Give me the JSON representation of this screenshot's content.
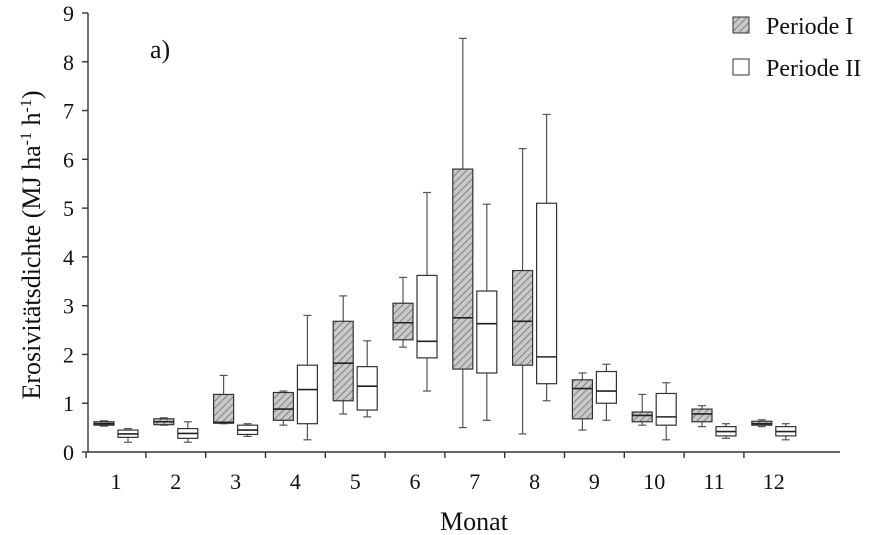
{
  "chart_data": {
    "type": "boxplot",
    "panel_label": "a)",
    "xlabel": "Monat",
    "ylabel_main": "Erosivitätsdichte (MJ ha",
    "ylabel_sup1": "-1",
    "ylabel_mid": " h",
    "ylabel_sup2": "-1",
    "ylabel_end": ")",
    "ylim": [
      0,
      9
    ],
    "yticks": [
      0,
      1,
      2,
      3,
      4,
      5,
      6,
      7,
      8,
      9
    ],
    "categories": [
      "1",
      "2",
      "3",
      "4",
      "5",
      "6",
      "7",
      "8",
      "9",
      "10",
      "11",
      "12"
    ],
    "legend_position": "top-right",
    "grid": false,
    "series": [
      {
        "name": "Periode I",
        "style": "hatched-gray",
        "boxes": [
          {
            "min": 0.53,
            "q1": 0.55,
            "median": 0.58,
            "q3": 0.62,
            "max": 0.64
          },
          {
            "min": 0.55,
            "q1": 0.56,
            "median": 0.62,
            "q3": 0.68,
            "max": 0.7
          },
          {
            "min": 0.58,
            "q1": 0.59,
            "median": 0.61,
            "q3": 1.18,
            "max": 1.57
          },
          {
            "min": 0.55,
            "q1": 0.65,
            "median": 0.88,
            "q3": 1.22,
            "max": 1.25
          },
          {
            "min": 0.78,
            "q1": 1.05,
            "median": 1.82,
            "q3": 2.68,
            "max": 3.2
          },
          {
            "min": 2.15,
            "q1": 2.3,
            "median": 2.65,
            "q3": 3.05,
            "max": 3.58
          },
          {
            "min": 0.5,
            "q1": 1.7,
            "median": 2.75,
            "q3": 5.8,
            "max": 8.48
          },
          {
            "min": 0.37,
            "q1": 1.78,
            "median": 2.68,
            "q3": 3.72,
            "max": 6.22
          },
          {
            "min": 0.45,
            "q1": 0.68,
            "median": 1.3,
            "q3": 1.48,
            "max": 1.62
          },
          {
            "min": 0.55,
            "q1": 0.62,
            "median": 0.75,
            "q3": 0.82,
            "max": 1.18
          },
          {
            "min": 0.52,
            "q1": 0.62,
            "median": 0.78,
            "q3": 0.88,
            "max": 0.95
          },
          {
            "min": 0.52,
            "q1": 0.55,
            "median": 0.58,
            "q3": 0.63,
            "max": 0.66
          }
        ]
      },
      {
        "name": "Periode II",
        "style": "white",
        "boxes": [
          {
            "min": 0.2,
            "q1": 0.3,
            "median": 0.37,
            "q3": 0.45,
            "max": 0.48
          },
          {
            "min": 0.2,
            "q1": 0.28,
            "median": 0.38,
            "q3": 0.48,
            "max": 0.62
          },
          {
            "min": 0.32,
            "q1": 0.36,
            "median": 0.45,
            "q3": 0.55,
            "max": 0.58
          },
          {
            "min": 0.25,
            "q1": 0.58,
            "median": 1.28,
            "q3": 1.78,
            "max": 2.8
          },
          {
            "min": 0.72,
            "q1": 0.86,
            "median": 1.35,
            "q3": 1.75,
            "max": 2.28
          },
          {
            "min": 1.25,
            "q1": 1.93,
            "median": 2.27,
            "q3": 3.62,
            "max": 5.32
          },
          {
            "min": 0.65,
            "q1": 1.62,
            "median": 2.63,
            "q3": 3.3,
            "max": 5.08
          },
          {
            "min": 1.05,
            "q1": 1.4,
            "median": 1.95,
            "q3": 5.1,
            "max": 6.92
          },
          {
            "min": 0.65,
            "q1": 1.0,
            "median": 1.25,
            "q3": 1.65,
            "max": 1.8
          },
          {
            "min": 0.25,
            "q1": 0.55,
            "median": 0.72,
            "q3": 1.2,
            "max": 1.42
          },
          {
            "min": 0.28,
            "q1": 0.33,
            "median": 0.42,
            "q3": 0.52,
            "max": 0.58
          },
          {
            "min": 0.25,
            "q1": 0.33,
            "median": 0.42,
            "q3": 0.52,
            "max": 0.58
          }
        ]
      }
    ]
  }
}
